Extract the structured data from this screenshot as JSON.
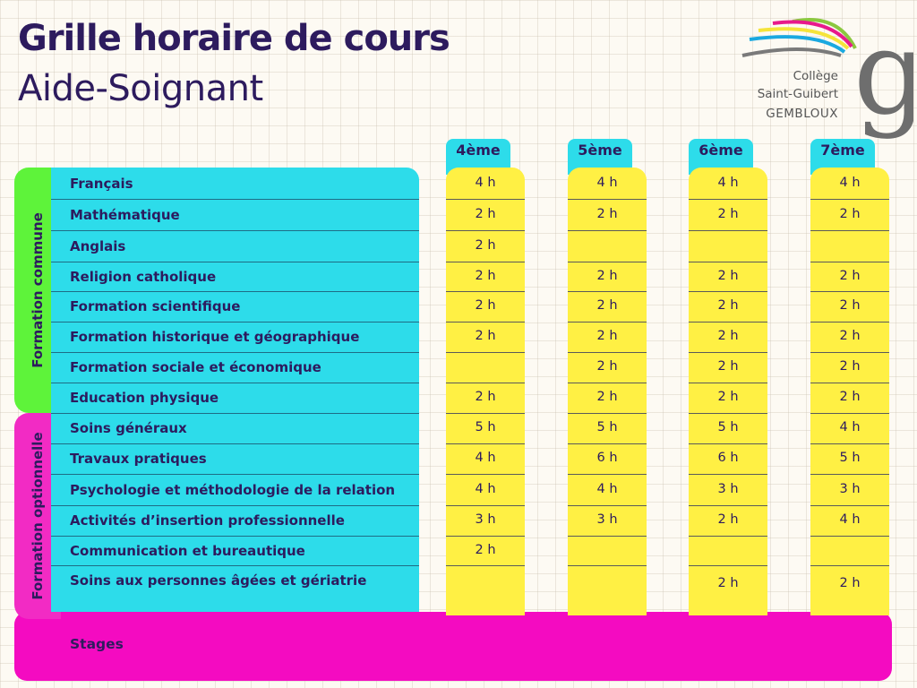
{
  "header": {
    "title": "Grille horaire de cours",
    "subtitle": "Aide-Soignant"
  },
  "logo": {
    "line1": "Collège",
    "line2": "Saint-Guibert",
    "line3": "GEMBLOUX",
    "letter": "g"
  },
  "groups": {
    "common": "Formation commune",
    "optional": "Formation optionnelle"
  },
  "years": [
    "4ème",
    "5ème",
    "6ème",
    "7ème"
  ],
  "subjects": [
    {
      "name": "Français",
      "hours": [
        "4 h",
        "4 h",
        "4 h",
        "4 h"
      ]
    },
    {
      "name": "Mathématique",
      "hours": [
        "2 h",
        "2 h",
        "2 h",
        "2 h"
      ]
    },
    {
      "name": "Anglais",
      "hours": [
        "2 h",
        "",
        "",
        ""
      ]
    },
    {
      "name": "Religion catholique",
      "hours": [
        "2 h",
        "2 h",
        "2 h",
        "2 h"
      ]
    },
    {
      "name": "Formation scientifique",
      "hours": [
        "2 h",
        "2 h",
        "2 h",
        "2 h"
      ]
    },
    {
      "name": "Formation historique et géographique",
      "hours": [
        "2 h",
        "2 h",
        "2 h",
        "2 h"
      ]
    },
    {
      "name": "Formation sociale et économique",
      "hours": [
        "",
        "2 h",
        "2 h",
        "2 h"
      ]
    },
    {
      "name": "Education physique",
      "hours": [
        "2 h",
        "2 h",
        "2 h",
        "2 h"
      ]
    },
    {
      "name": "Soins généraux",
      "hours": [
        "5 h",
        "5 h",
        "5 h",
        "4 h"
      ]
    },
    {
      "name": "Travaux pratiques",
      "hours": [
        "4 h",
        "6 h",
        "6 h",
        "5 h"
      ]
    },
    {
      "name": "Psychologie et méthodologie de la relation",
      "hours": [
        "4 h",
        "4 h",
        "3 h",
        "3 h"
      ]
    },
    {
      "name": "Activités d’insertion professionnelle",
      "hours": [
        "3 h",
        "3 h",
        "2 h",
        "4 h"
      ]
    },
    {
      "name": "Communication et bureautique",
      "hours": [
        "2 h",
        "",
        "",
        ""
      ]
    },
    {
      "name": "Soins aux personnes âgées et gériatrie",
      "hours": [
        "",
        "",
        "2 h",
        "2 h"
      ]
    }
  ],
  "stages": "Stages",
  "colors": {
    "title": "#2d1b5e",
    "cyan": "#2ddcea",
    "yellow": "#fff044",
    "green": "#5ef33a",
    "magenta": "#f40bc1"
  }
}
